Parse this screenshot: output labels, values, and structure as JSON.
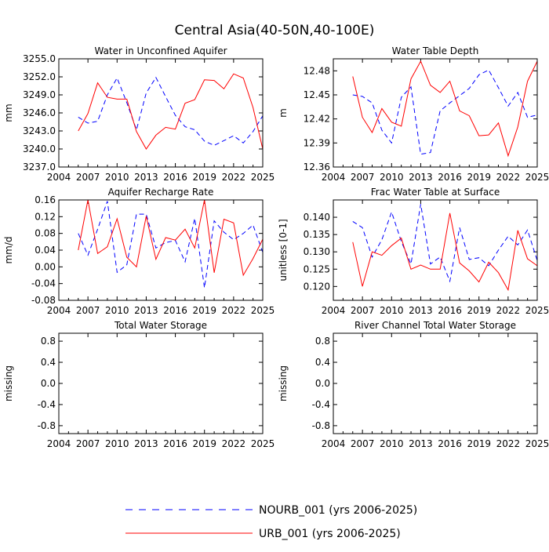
{
  "figure": {
    "title": "Central Asia(40-50N,40-100E)",
    "legend": [
      {
        "label": "NOURB_001 (yrs 2006-2025)",
        "color": "#0000ff",
        "style": "dashed"
      },
      {
        "label": "URB_001 (yrs 2006-2025)",
        "color": "#ff0000",
        "style": "solid"
      }
    ]
  },
  "chart_data": [
    {
      "type": "line",
      "title": "Water in Unconfined Aquifer",
      "ylabel": "mm",
      "xlim": [
        2004,
        2025
      ],
      "ylim": [
        3237.0,
        3255.0
      ],
      "xticks": [
        2004,
        2007,
        2010,
        2013,
        2016,
        2019,
        2022,
        2025
      ],
      "ytick_labels": [
        "3237.0",
        "3240.0",
        "3243.0",
        "3246.0",
        "3249.0",
        "3252.0",
        "3255.0"
      ],
      "grid": false,
      "x": [
        2006,
        2007,
        2008,
        2009,
        2010,
        2011,
        2012,
        2013,
        2014,
        2015,
        2016,
        2017,
        2018,
        2019,
        2020,
        2021,
        2022,
        2023,
        2024,
        2025
      ],
      "series": [
        {
          "name": "NOURB_001",
          "color": "#0000ff",
          "dash": true,
          "values": [
            3245.3,
            3244.3,
            3244.6,
            3249.0,
            3251.8,
            3247.7,
            3243.2,
            3249.3,
            3251.9,
            3248.7,
            3245.6,
            3243.7,
            3243.2,
            3241.3,
            3240.6,
            3241.4,
            3242.2,
            3241.0,
            3242.9,
            3245.5
          ]
        },
        {
          "name": "URB_001",
          "color": "#ff0000",
          "dash": false,
          "values": [
            3243.0,
            3245.9,
            3251.0,
            3248.6,
            3248.3,
            3248.3,
            3242.9,
            3240.0,
            3242.3,
            3243.6,
            3243.3,
            3247.6,
            3248.2,
            3251.5,
            3251.4,
            3250.0,
            3252.5,
            3251.8,
            3246.9,
            3240.0
          ]
        }
      ]
    },
    {
      "type": "line",
      "title": "Water Table Depth",
      "ylabel": "m",
      "xlim": [
        2004,
        2025
      ],
      "ylim": [
        12.36,
        12.495
      ],
      "xticks": [
        2004,
        2007,
        2010,
        2013,
        2016,
        2019,
        2022,
        2025
      ],
      "ytick_labels": [
        "12.36",
        "12.39",
        "12.42",
        "12.45",
        "12.48"
      ],
      "grid": false,
      "x": [
        2006,
        2007,
        2008,
        2009,
        2010,
        2011,
        2012,
        2013,
        2014,
        2015,
        2016,
        2017,
        2018,
        2019,
        2020,
        2021,
        2022,
        2023,
        2024,
        2025
      ],
      "series": [
        {
          "name": "NOURB_001",
          "color": "#0000ff",
          "dash": true,
          "values": [
            12.45,
            12.448,
            12.44,
            12.406,
            12.39,
            12.447,
            12.46,
            12.376,
            12.378,
            12.43,
            12.44,
            12.449,
            12.458,
            12.475,
            12.481,
            12.459,
            12.436,
            12.453,
            12.422,
            12.425
          ]
        },
        {
          "name": "URB_001",
          "color": "#ff0000",
          "dash": false,
          "values": [
            12.473,
            12.422,
            12.403,
            12.433,
            12.416,
            12.411,
            12.47,
            12.492,
            12.462,
            12.453,
            12.467,
            12.43,
            12.424,
            12.399,
            12.4,
            12.415,
            12.374,
            12.41,
            12.467,
            12.492
          ]
        }
      ]
    },
    {
      "type": "line",
      "title": "Aquifer Recharge Rate",
      "ylabel": "mm/d",
      "xlim": [
        2004,
        2025
      ],
      "ylim": [
        -0.08,
        0.16
      ],
      "xticks": [
        2004,
        2007,
        2010,
        2013,
        2016,
        2019,
        2022,
        2025
      ],
      "ytick_labels": [
        "-0.08",
        "-0.04",
        "0.00",
        "0.04",
        "0.08",
        "0.12",
        "0.16"
      ],
      "grid": false,
      "x": [
        2006,
        2007,
        2008,
        2009,
        2010,
        2011,
        2012,
        2013,
        2014,
        2015,
        2016,
        2017,
        2018,
        2019,
        2020,
        2021,
        2022,
        2023,
        2024,
        2025
      ],
      "series": [
        {
          "name": "NOURB_001",
          "color": "#0000ff",
          "dash": true,
          "values": [
            0.08,
            0.028,
            0.09,
            0.157,
            -0.013,
            0.005,
            0.126,
            0.126,
            0.045,
            0.058,
            0.063,
            0.012,
            0.116,
            -0.05,
            0.11,
            0.083,
            0.065,
            0.08,
            0.1,
            0.035
          ]
        },
        {
          "name": "URB_001",
          "color": "#ff0000",
          "dash": false,
          "values": [
            0.04,
            0.16,
            0.032,
            0.048,
            0.115,
            0.023,
            0.0,
            0.121,
            0.018,
            0.07,
            0.064,
            0.09,
            0.045,
            0.16,
            -0.014,
            0.114,
            0.105,
            -0.02,
            0.02,
            0.066
          ]
        }
      ]
    },
    {
      "type": "line",
      "title": "Frac Water Table at Surface",
      "ylabel": "unitless [0-1]",
      "xlim": [
        2004,
        2025
      ],
      "ylim": [
        0.116,
        0.145
      ],
      "xticks": [
        2004,
        2007,
        2010,
        2013,
        2016,
        2019,
        2022,
        2025
      ],
      "ytick_labels": [
        "0.120",
        "0.125",
        "0.130",
        "0.135",
        "0.140"
      ],
      "grid": false,
      "x": [
        2006,
        2007,
        2008,
        2009,
        2010,
        2011,
        2012,
        2013,
        2014,
        2015,
        2016,
        2017,
        2018,
        2019,
        2020,
        2021,
        2022,
        2023,
        2024,
        2025
      ],
      "series": [
        {
          "name": "NOURB_001",
          "color": "#0000ff",
          "dash": true,
          "values": [
            0.1388,
            0.137,
            0.1285,
            0.1335,
            0.1415,
            0.133,
            0.1265,
            0.1438,
            0.1265,
            0.1285,
            0.1215,
            0.137,
            0.1278,
            0.1283,
            0.126,
            0.1305,
            0.1345,
            0.132,
            0.1363,
            0.1275
          ]
        },
        {
          "name": "URB_001",
          "color": "#ff0000",
          "dash": false,
          "values": [
            0.1328,
            0.12,
            0.13,
            0.129,
            0.1318,
            0.134,
            0.125,
            0.1262,
            0.125,
            0.125,
            0.1412,
            0.1268,
            0.1245,
            0.1213,
            0.127,
            0.124,
            0.119,
            0.1362,
            0.128,
            0.126
          ]
        }
      ]
    },
    {
      "type": "line",
      "title": "Total Water Storage",
      "ylabel": "missing",
      "xlim": [
        2004,
        2025
      ],
      "ylim": [
        -0.95,
        0.95
      ],
      "xticks": [
        2004,
        2007,
        2010,
        2013,
        2016,
        2019,
        2022,
        2025
      ],
      "ytick_labels": [
        "-0.8",
        "-0.4",
        "0.0",
        "0.4",
        "0.8"
      ],
      "grid": false,
      "x": [],
      "series": []
    },
    {
      "type": "line",
      "title": "River Channel Total Water Storage",
      "ylabel": "missing",
      "xlim": [
        2004,
        2025
      ],
      "ylim": [
        -0.95,
        0.95
      ],
      "xticks": [
        2004,
        2007,
        2010,
        2013,
        2016,
        2019,
        2022,
        2025
      ],
      "ytick_labels": [
        "-0.8",
        "-0.4",
        "0.0",
        "0.4",
        "0.8"
      ],
      "grid": false,
      "x": [],
      "series": []
    }
  ]
}
